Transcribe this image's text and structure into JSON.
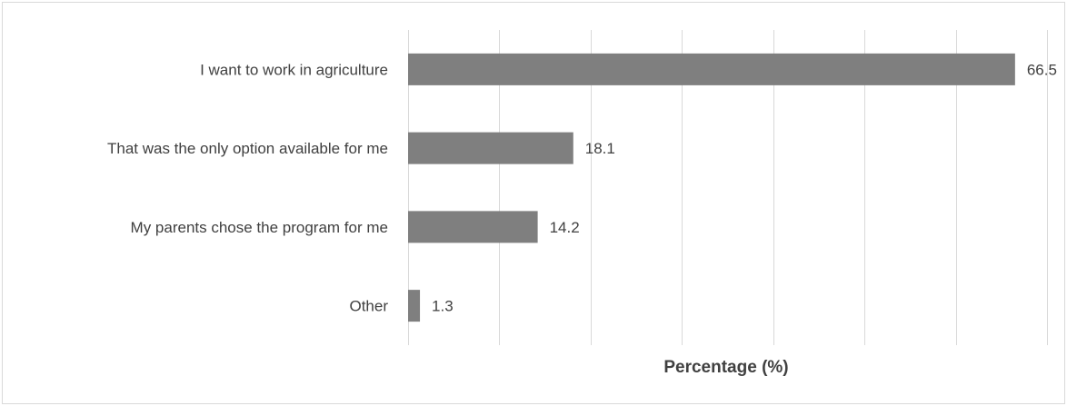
{
  "chart_data": {
    "type": "bar",
    "orientation": "horizontal",
    "categories": [
      "I want to work in agriculture",
      "That was the only option available for me",
      "My parents chose the program for me",
      "Other"
    ],
    "values": [
      66.5,
      18.1,
      14.2,
      1.3
    ],
    "data_labels": [
      "66.5",
      "18.1",
      "14.2",
      "1.3"
    ],
    "xlabel": "Percentage (%)",
    "ylabel": "",
    "xlim": [
      0,
      70
    ],
    "grid": true,
    "legend": "none",
    "bar_color": "#7f7f7f",
    "grid_color": "#d9d9d9",
    "text_color": "#404040"
  }
}
